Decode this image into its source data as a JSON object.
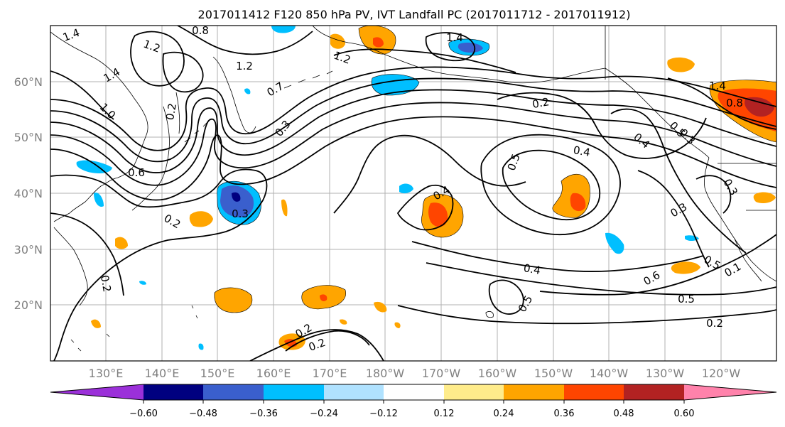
{
  "title": "2017011412 F120 850 hPa PV, IVT Landfall PC (2017011712 - 2017011912)",
  "lat_labels": [
    "60°N",
    "50°N",
    "40°N",
    "30°N",
    "20°N"
  ],
  "lon_labels": [
    "130°E",
    "140°E",
    "150°E",
    "160°E",
    "170°E",
    "180°W",
    "170°W",
    "160°W",
    "150°W",
    "140°W",
    "130°W",
    "120°W"
  ],
  "colorbar": {
    "colors": [
      "#9b30d9",
      "#000080",
      "#3a5fcd",
      "#00bfff",
      "#b0e2ff",
      "#ffffff",
      "#ffec8b",
      "#ffa500",
      "#ff4500",
      "#b22222",
      "#ff82ab"
    ],
    "tick_labels": [
      "−0.60",
      "−0.48",
      "−0.36",
      "−0.24",
      "−0.12",
      "0.12",
      "0.24",
      "0.36",
      "0.48",
      "0.60"
    ]
  },
  "contour_labels": [
    "1.4",
    "0.8",
    "1.2",
    "1.4",
    "1.0",
    "0.6",
    "1.2",
    "1.4",
    "1.2",
    "0.7",
    "0.3",
    "0.2",
    "0.2",
    "0.3",
    "0.2",
    "0.2",
    "0.2",
    "0.4",
    "0.5",
    "0.4",
    "0.2",
    "0.4",
    "0.3",
    "0.3",
    "0.5",
    "0.4",
    "0.5",
    "0.6",
    "0.5",
    "0.1",
    "0.2",
    "0.8",
    "1.4",
    "0.5",
    "0.3"
  ],
  "colors_meaning": {
    "coast": "#000000",
    "grid": "#b0b0b0"
  }
}
